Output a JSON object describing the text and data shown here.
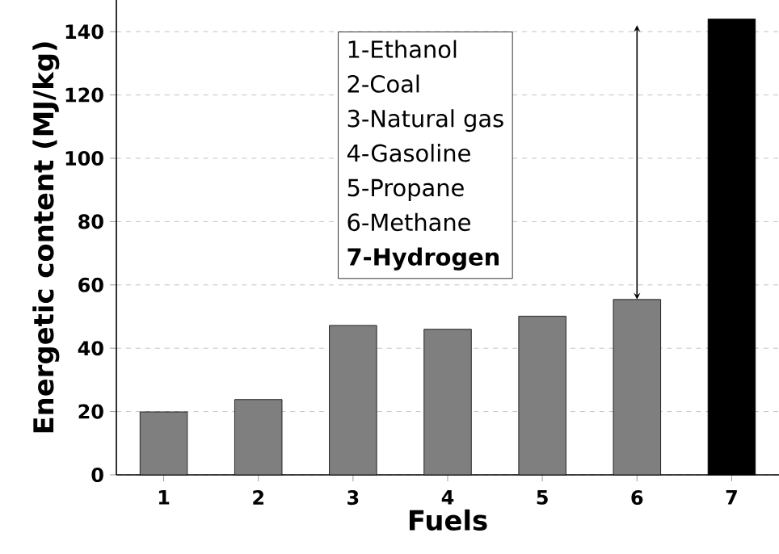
{
  "chart_data": {
    "type": "bar",
    "xlabel": "Fuels",
    "ylabel": "Energetic content (MJ/kg)",
    "categories": [
      "1",
      "2",
      "3",
      "4",
      "5",
      "6",
      "7"
    ],
    "values": [
      19.9,
      23.8,
      47.2,
      46,
      50.1,
      55.4,
      144
    ],
    "colors": [
      "#7f7f7f",
      "#7f7f7f",
      "#7f7f7f",
      "#7f7f7f",
      "#7f7f7f",
      "#7f7f7f",
      "#000000"
    ],
    "ylim": [
      0,
      150
    ],
    "yticks": [
      0,
      20,
      40,
      60,
      80,
      100,
      120,
      140
    ],
    "grid": "y",
    "annotations": [
      "1-Ethanol",
      "2-Coal",
      "3-Natural gas",
      "4-Gasoline",
      "5-Propane",
      "6-Methane",
      "**7-Hydrogen**"
    ]
  }
}
